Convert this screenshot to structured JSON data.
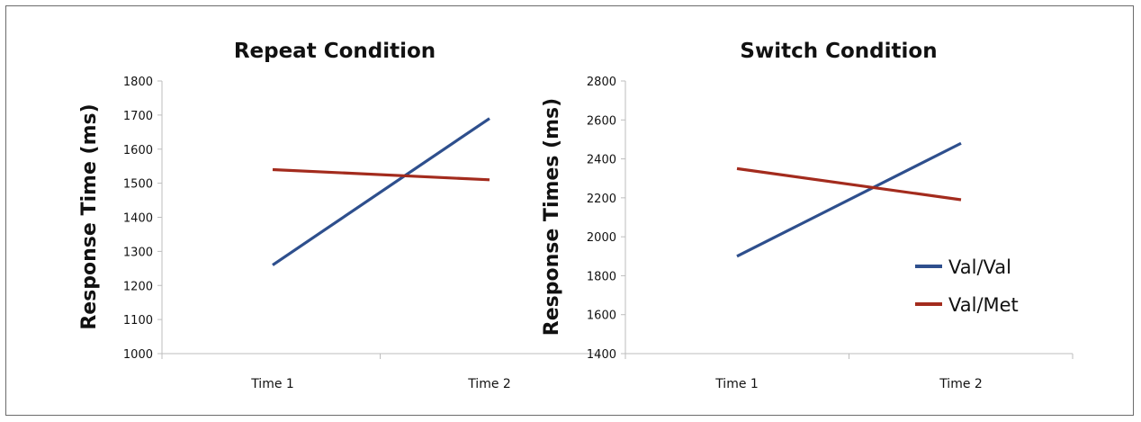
{
  "colors": {
    "val_val": "#2e4f8d",
    "val_met": "#a32b1d"
  },
  "chart_data": [
    {
      "type": "line",
      "title": "Repeat Condition",
      "xlabel": "",
      "ylabel": "Response Time (ms)",
      "categories": [
        "Time 1",
        "Time 2"
      ],
      "ylim": [
        1000,
        1800
      ],
      "yticks": [
        1000,
        1100,
        1200,
        1300,
        1400,
        1500,
        1600,
        1700,
        1800
      ],
      "grid": false,
      "series": [
        {
          "name": "Val/Val",
          "values": [
            1260,
            1690
          ]
        },
        {
          "name": "Val/Met",
          "values": [
            1540,
            1510
          ]
        }
      ]
    },
    {
      "type": "line",
      "title": "Switch Condition",
      "xlabel": "",
      "ylabel": "Response Times (ms)",
      "categories": [
        "Time 1",
        "Time 2"
      ],
      "ylim": [
        1400,
        2800
      ],
      "yticks": [
        1400,
        1600,
        1800,
        2000,
        2200,
        2400,
        2600,
        2800
      ],
      "grid": false,
      "legend": "right",
      "series": [
        {
          "name": "Val/Val",
          "values": [
            1900,
            2480
          ]
        },
        {
          "name": "Val/Met",
          "values": [
            2350,
            2190
          ]
        }
      ]
    }
  ]
}
